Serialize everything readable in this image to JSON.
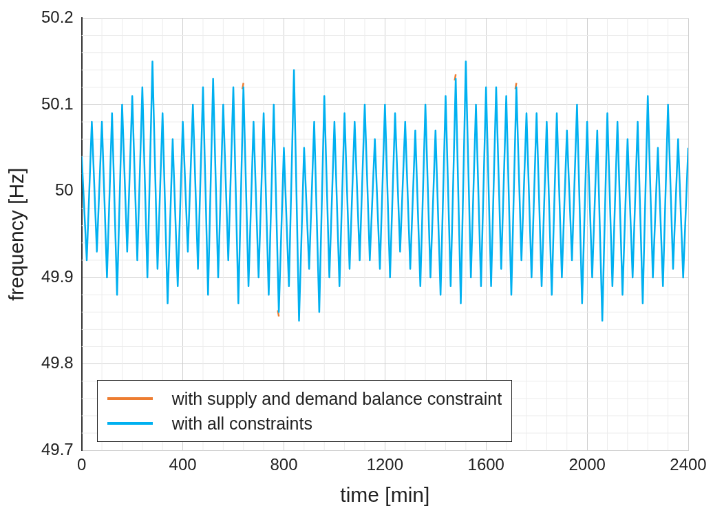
{
  "chart_data": {
    "type": "line",
    "xlabel": "time [min]",
    "ylabel": "frequency [Hz]",
    "x": [
      0,
      20,
      40,
      60,
      80,
      100,
      120,
      140,
      160,
      180,
      200,
      220,
      240,
      260,
      280,
      300,
      320,
      340,
      360,
      380,
      400,
      420,
      440,
      460,
      480,
      500,
      520,
      540,
      560,
      580,
      600,
      620,
      640,
      660,
      680,
      700,
      720,
      740,
      760,
      780,
      800,
      820,
      840,
      860,
      880,
      900,
      920,
      940,
      960,
      980,
      1000,
      1020,
      1040,
      1060,
      1080,
      1100,
      1120,
      1140,
      1160,
      1180,
      1200,
      1220,
      1240,
      1260,
      1280,
      1300,
      1320,
      1340,
      1360,
      1380,
      1400,
      1420,
      1440,
      1460,
      1480,
      1500,
      1520,
      1540,
      1560,
      1580,
      1600,
      1620,
      1640,
      1660,
      1680,
      1700,
      1720,
      1740,
      1760,
      1780,
      1800,
      1820,
      1840,
      1860,
      1880,
      1900,
      1920,
      1940,
      1960,
      1980,
      2000,
      2020,
      2040,
      2060,
      2080,
      2100,
      2120,
      2140,
      2160,
      2180,
      2200,
      2220,
      2240,
      2260,
      2280,
      2300,
      2320,
      2340,
      2360,
      2380,
      2400
    ],
    "series": [
      {
        "name": "with supply and demand balance constraint",
        "color": "#ed7d31",
        "x": [
          636,
          640,
          700,
          776,
          780,
          1100,
          1476,
          1480,
          1600,
          1716,
          1720
        ],
        "values": [
          50.118,
          50.125,
          null,
          49.862,
          49.855,
          null,
          50.128,
          50.135,
          null,
          50.118,
          50.125
        ]
      },
      {
        "name": "with all constraints",
        "color": "#00b0f0",
        "values": [
          50.04,
          49.92,
          50.08,
          49.93,
          50.08,
          49.9,
          50.09,
          49.88,
          50.1,
          49.93,
          50.11,
          49.92,
          50.12,
          49.9,
          50.15,
          49.91,
          50.09,
          49.87,
          50.06,
          49.89,
          50.08,
          49.93,
          50.1,
          49.91,
          50.12,
          49.88,
          50.13,
          49.9,
          50.1,
          49.92,
          50.12,
          49.87,
          50.12,
          49.89,
          50.08,
          49.9,
          50.09,
          49.88,
          50.1,
          49.86,
          50.05,
          49.89,
          50.14,
          49.85,
          50.05,
          49.91,
          50.08,
          49.86,
          50.11,
          49.9,
          50.08,
          49.89,
          50.09,
          49.91,
          50.08,
          49.92,
          50.1,
          49.92,
          50.06,
          49.91,
          50.1,
          49.9,
          50.09,
          49.93,
          50.08,
          49.91,
          50.07,
          49.89,
          50.1,
          49.9,
          50.07,
          49.88,
          50.11,
          49.89,
          50.13,
          49.87,
          50.15,
          49.9,
          50.1,
          49.89,
          50.12,
          49.89,
          50.12,
          49.91,
          50.11,
          49.88,
          50.12,
          49.92,
          50.09,
          49.9,
          50.09,
          49.89,
          50.08,
          49.88,
          50.09,
          49.9,
          50.07,
          49.92,
          50.1,
          49.87,
          50.08,
          49.9,
          50.07,
          49.85,
          50.09,
          49.89,
          50.08,
          49.88,
          50.06,
          49.9,
          50.08,
          49.87,
          50.11,
          49.9,
          50.05,
          49.89,
          50.1,
          49.91,
          50.06,
          49.9,
          50.05
        ]
      }
    ],
    "xlim": [
      0,
      2400
    ],
    "xticks": [
      0,
      400,
      800,
      1200,
      1600,
      2000,
      2400
    ],
    "ylim": [
      49.7,
      50.2
    ],
    "yticks": [
      49.7,
      49.8,
      49.9,
      50,
      50.1,
      50.2
    ],
    "grid": true,
    "legend": "bottom left",
    "marker": "none",
    "line_style": "solid"
  }
}
